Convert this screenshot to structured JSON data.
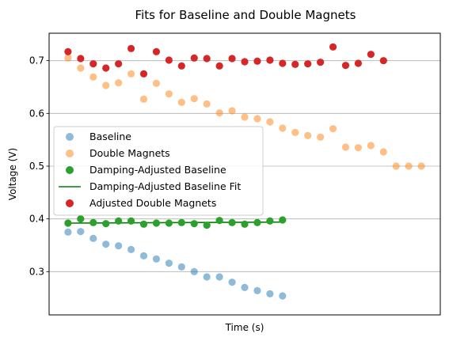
{
  "chart_data": {
    "type": "scatter",
    "title": "Fits for Baseline and Double Magnets",
    "xlabel": "Time (s)",
    "ylabel": "Voltage (V)",
    "ylim": [
      0.218,
      0.752
    ],
    "xlim": [
      -1.5,
      29.5
    ],
    "y_ticks": [
      "0.3",
      "0.4",
      "0.5",
      "0.6",
      "0.7"
    ],
    "y_tick_values": [
      0.3,
      0.4,
      0.5,
      0.6,
      0.7
    ],
    "x_ticks_shown": false,
    "grid": "horizontal",
    "legend_position": "center-left",
    "colors": {
      "baseline": "#1f77b4",
      "double_magnets": "#ff7f0e",
      "damping_adjusted_baseline": "#2ca02c",
      "fit_line": "#008000",
      "adjusted_double_magnets": "#d62728",
      "grid": "#b0b0b0"
    },
    "series": [
      {
        "name": "Baseline",
        "kind": "points",
        "alpha": 0.5,
        "x": [
          0,
          1,
          2,
          3,
          4,
          5,
          6,
          7,
          8,
          9,
          10,
          11,
          12,
          13,
          14,
          15,
          16,
          17
        ],
        "y": [
          0.375,
          0.376,
          0.363,
          0.352,
          0.349,
          0.342,
          0.33,
          0.324,
          0.316,
          0.309,
          0.3,
          0.29,
          0.29,
          0.28,
          0.27,
          0.264,
          0.258,
          0.254
        ]
      },
      {
        "name": "Double Magnets",
        "kind": "points",
        "alpha": 0.5,
        "x": [
          0,
          1,
          2,
          3,
          4,
          5,
          6,
          7,
          8,
          9,
          10,
          11,
          12,
          13,
          14,
          15,
          16,
          17,
          18,
          19,
          20,
          21,
          22,
          23,
          24,
          25,
          26,
          27,
          28
        ],
        "y": [
          0.705,
          0.686,
          0.669,
          0.653,
          0.658,
          0.675,
          0.627,
          0.657,
          0.637,
          0.621,
          0.628,
          0.618,
          0.601,
          0.605,
          0.593,
          0.59,
          0.584,
          0.572,
          0.564,
          0.558,
          0.555,
          0.571,
          0.536,
          0.535,
          0.539,
          0.527,
          0.5,
          0.5,
          0.5
        ]
      },
      {
        "name": "Damping-Adjusted Baseline",
        "kind": "points",
        "alpha": 1.0,
        "x": [
          0,
          1,
          2,
          3,
          4,
          5,
          6,
          7,
          8,
          9,
          10,
          11,
          12,
          13,
          14,
          15,
          16,
          17
        ],
        "y": [
          0.392,
          0.4,
          0.393,
          0.391,
          0.396,
          0.396,
          0.39,
          0.392,
          0.392,
          0.393,
          0.391,
          0.388,
          0.397,
          0.393,
          0.39,
          0.393,
          0.396,
          0.398
        ]
      },
      {
        "name": "Damping-Adjusted Baseline Fit",
        "kind": "line",
        "x": [
          0,
          17
        ],
        "y": [
          0.392,
          0.394
        ]
      },
      {
        "name": "Adjusted Double Magnets",
        "kind": "points",
        "alpha": 1.0,
        "x": [
          0,
          1,
          2,
          3,
          4,
          5,
          6,
          7,
          8,
          9,
          10,
          11,
          12,
          13,
          14,
          15,
          16,
          17,
          18,
          19,
          20,
          21,
          22,
          23,
          24,
          25
        ],
        "y": [
          0.717,
          0.704,
          0.694,
          0.686,
          0.694,
          0.723,
          0.675,
          0.717,
          0.701,
          0.69,
          0.705,
          0.704,
          0.69,
          0.704,
          0.698,
          0.699,
          0.701,
          0.695,
          0.693,
          0.694,
          0.697,
          0.726,
          0.691,
          0.695,
          0.712,
          0.7
        ]
      }
    ]
  }
}
